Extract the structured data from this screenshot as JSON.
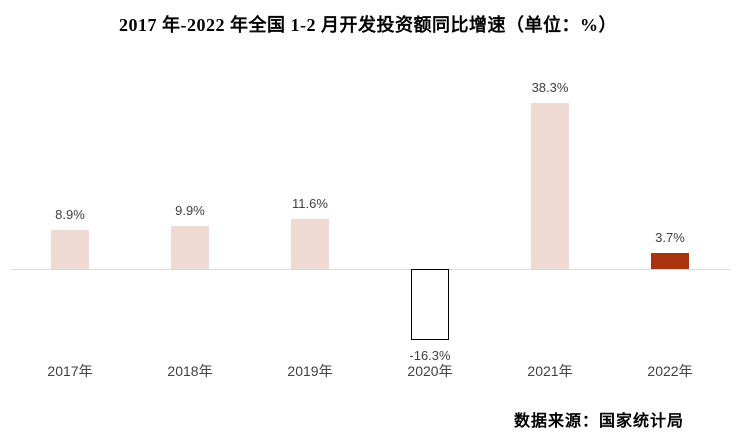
{
  "chart_data": {
    "type": "bar",
    "title": "2017 年-2022 年全国 1-2 月开发投资额同比增速（单位：%）",
    "categories": [
      "2017年",
      "2018年",
      "2019年",
      "2020年",
      "2021年",
      "2022年"
    ],
    "values": [
      8.9,
      9.9,
      11.6,
      -16.3,
      38.3,
      3.7
    ],
    "value_labels": [
      "8.9%",
      "9.9%",
      "11.6%",
      "-16.3%",
      "38.3%",
      "3.7%"
    ],
    "xlabel": "",
    "ylabel": "",
    "grid": false,
    "legend": false,
    "ylim": [
      -20,
      42
    ],
    "colors": {
      "default_bar": "#efd9d3",
      "negative_bar_fill": "#ffffff",
      "negative_bar_border": "#000000",
      "highlight_bar": "#a93311",
      "axis_line": "#d9d9d9",
      "label_text": "#404040",
      "title_text": "#000000"
    },
    "bar_colors": [
      "#efd9d3",
      "#efd9d3",
      "#efd9d3",
      "#ffffff",
      "#efd9d3",
      "#a93311"
    ]
  },
  "source": "数据来源：国家统计局"
}
